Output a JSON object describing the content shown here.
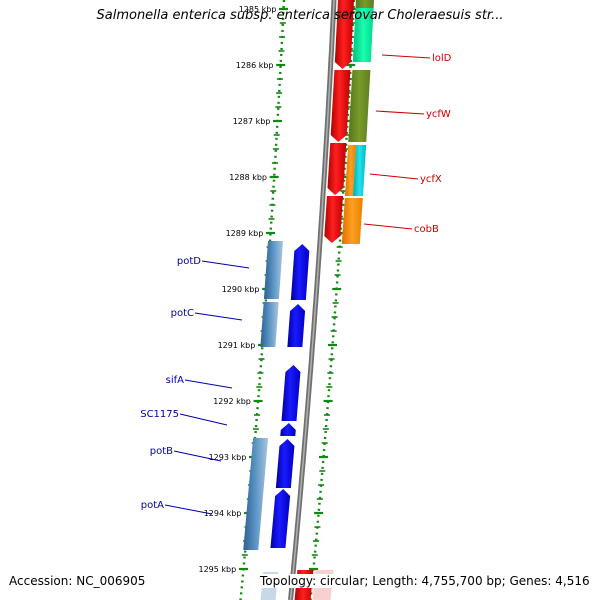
{
  "title": "Salmonella enterica subsp. enterica serovar Choleraesuis str...",
  "footer": {
    "accession": "Accession: NC_006905",
    "topology": "Topology: circular; Length: 4,755,700 bp; Genes: 4,516"
  },
  "scale": {
    "unit": "kbp",
    "ticks": [
      {
        "value": 1285,
        "label": "1285 kbp"
      },
      {
        "value": 1286,
        "label": "1286 kbp"
      },
      {
        "value": 1287,
        "label": "1287 kbp"
      },
      {
        "value": 1288,
        "label": "1288 kbp"
      },
      {
        "value": 1289,
        "label": "1289 kbp"
      },
      {
        "value": 1290,
        "label": "1290 kbp"
      },
      {
        "value": 1291,
        "label": "1291 kbp"
      },
      {
        "value": 1292,
        "label": "1292 kbp"
      },
      {
        "value": 1293,
        "label": "1293 kbp"
      },
      {
        "value": 1294,
        "label": "1294 kbp"
      },
      {
        "value": 1295,
        "label": "1295 kbp"
      }
    ]
  },
  "genes": {
    "forward_labels": [
      {
        "name": "lolD",
        "color": "#cc0000"
      },
      {
        "name": "ycfW",
        "color": "#cc0000"
      },
      {
        "name": "ycfX",
        "color": "#cc0000"
      },
      {
        "name": "cobB",
        "color": "#cc0000"
      }
    ],
    "reverse_labels": [
      {
        "name": "potD",
        "color": "#0000aa"
      },
      {
        "name": "potC",
        "color": "#0000aa"
      },
      {
        "name": "sifA",
        "color": "#0000aa"
      },
      {
        "name": "SC1175",
        "color": "#0000aa"
      },
      {
        "name": "potB",
        "color": "#0000aa"
      },
      {
        "name": "potA",
        "color": "#0000aa"
      }
    ]
  },
  "colors": {
    "forward_strand": "#ff0000",
    "reverse_strand": "#0000ee",
    "backbone": "#888888",
    "tick_marks": "#118811",
    "cog_green": "#00ee99",
    "cog_olive": "#6b8e23",
    "cog_cyan": "#00cccc",
    "cog_orange": "#ff8c00",
    "cog_steelblue": "#4682b4"
  }
}
